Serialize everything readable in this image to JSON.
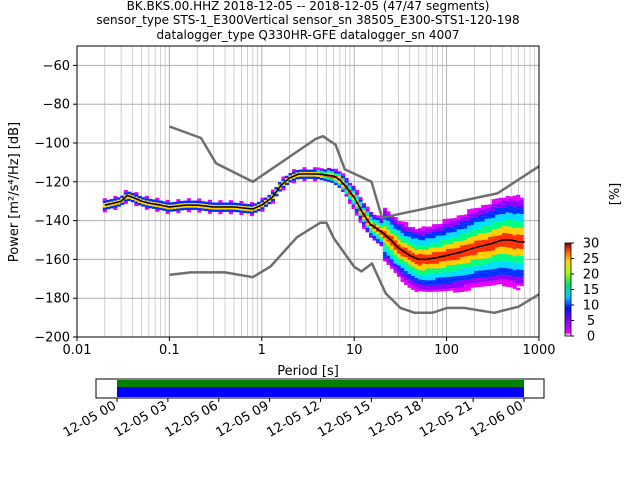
{
  "title_lines": [
    "BK.BKS.00.HHZ   2018-12-05 -- 2018-12-05  (47/47 segments)",
    "sensor_type STS-1_E300Vertical sensor_sn 38505_E300-STS1-120-198",
    "datalogger_type Q330HR-GFE datalogger_sn 4007"
  ],
  "chart_data": {
    "type": "heatmap",
    "xlabel": "Period [s]",
    "ylabel": "Power [m²/s⁴/Hz] [dB]",
    "xscale": "log",
    "xlim": [
      0.01,
      1000
    ],
    "ylim": [
      -200,
      -50
    ],
    "xticks": [
      0.01,
      0.1,
      1,
      10,
      100,
      1000
    ],
    "xtick_labels": [
      "0.01",
      "0.1",
      "1",
      "10",
      "100",
      "1000"
    ],
    "yticks": [
      -200,
      -180,
      -160,
      -140,
      -120,
      -100,
      -80,
      -60
    ],
    "ytick_labels": [
      "−200",
      "−180",
      "−160",
      "−140",
      "−120",
      "−100",
      "−80",
      "−60"
    ],
    "grid": true,
    "noise_model_high": {
      "period": [
        0.1,
        0.22,
        0.32,
        0.8,
        3.8,
        4.6,
        6.3,
        7.9,
        15.4,
        20,
        354.8,
        1000
      ],
      "power": [
        -91.5,
        -97.4,
        -110.5,
        -120,
        -98,
        -96.5,
        -101,
        -113.5,
        -120,
        -138.5,
        -126,
        -112
      ]
    },
    "noise_model_low": {
      "period": [
        0.1,
        0.17,
        0.4,
        0.8,
        1.24,
        2.4,
        4.3,
        5,
        6,
        10,
        12,
        15.6,
        21.9,
        31.6,
        45,
        70,
        101,
        154,
        328,
        600,
        1000
      ],
      "power": [
        -168,
        -166.7,
        -166.7,
        -169.2,
        -163.7,
        -148.6,
        -141.1,
        -141.1,
        -149,
        -163.8,
        -166.2,
        -162.1,
        -177.5,
        -185,
        -187.5,
        -187.5,
        -185,
        -185,
        -187.5,
        -184.4,
        -178
      ]
    },
    "median": {
      "period": [
        0.02,
        0.025,
        0.03,
        0.035,
        0.04,
        0.05,
        0.06,
        0.08,
        0.1,
        0.15,
        0.2,
        0.3,
        0.5,
        0.8,
        1,
        1.3,
        1.6,
        2,
        2.5,
        3,
        4,
        5,
        6,
        7,
        8,
        10,
        12,
        15,
        20,
        25,
        30,
        40,
        50,
        60,
        80,
        100,
        150,
        200,
        300,
        400,
        500,
        600,
        700
      ],
      "power": [
        -132,
        -131,
        -130,
        -127,
        -128,
        -130,
        -131,
        -132,
        -133,
        -132,
        -132,
        -133,
        -133,
        -134,
        -132,
        -128,
        -122,
        -118,
        -116,
        -116,
        -116,
        -116.5,
        -117,
        -119,
        -122,
        -128,
        -135,
        -142,
        -146,
        -150,
        -154,
        -158,
        -160,
        -160,
        -159,
        -158,
        -156,
        -154,
        -152,
        -150,
        -150,
        -151,
        -151
      ]
    },
    "colorbar": {
      "label": "[%]",
      "range": [
        0,
        30
      ],
      "ticks": [
        0,
        5,
        10,
        15,
        20,
        25,
        30
      ],
      "tick_labels": [
        "0",
        "5",
        "10",
        "15",
        "20",
        "25",
        "30"
      ]
    },
    "coverage": {
      "tick_labels": [
        "12-05 00",
        "12-05 03",
        "12-05 06",
        "12-05 09",
        "12-05 12",
        "12-05 15",
        "12-05 18",
        "12-05 21",
        "12-06 00"
      ]
    }
  }
}
